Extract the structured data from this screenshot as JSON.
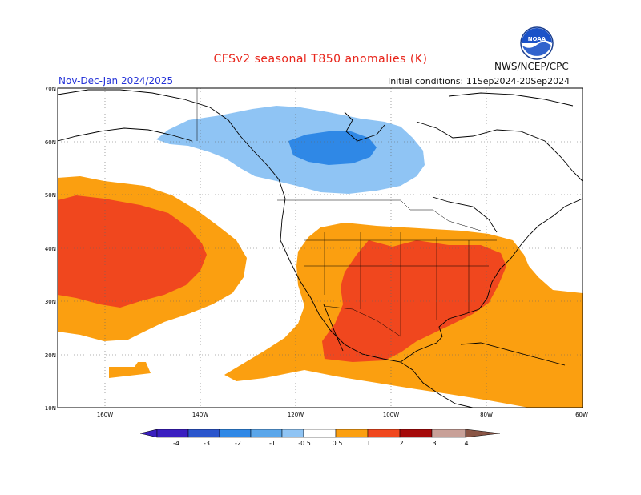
{
  "header": {
    "title": "CFSv2 seasonal T850 anomalies (K)",
    "period": "Nov-Dec-Jan 2024/2025",
    "initial_conditions": "Initial conditions: 11Sep2024-20Sep2024",
    "agency": "NWS/NCEP/CPC",
    "logo_text": "NOAA"
  },
  "map": {
    "lat_labels": [
      "70N",
      "60N",
      "50N",
      "40N",
      "30N",
      "20N",
      "10N"
    ],
    "lon_labels": [
      "160W",
      "140W",
      "120W",
      "100W",
      "80W",
      "60W"
    ],
    "regions": [
      {
        "name": "alaska-canada-cold",
        "level": "-1 to -0.5"
      },
      {
        "name": "hudson-bay-cold-core",
        "level": "-2 to -1"
      },
      {
        "name": "north-pacific-warm",
        "level": "0.5 to 2"
      },
      {
        "name": "southern-us-mexico-warm",
        "level": "0.5 to 2"
      }
    ]
  },
  "colorbar": {
    "labels": [
      "-4",
      "-3",
      "-2",
      "-1",
      "-0.5",
      "0.5",
      "1",
      "2",
      "3",
      "4"
    ],
    "colors": [
      "#3a1ec0",
      "#2a55cc",
      "#2f88e6",
      "#5aa6ea",
      "#8fc4f4",
      "#ffffff",
      "#fb9f10",
      "#f0471e",
      "#c81414",
      "#a50a0a",
      "#c8a098",
      "#8a5545"
    ]
  }
}
